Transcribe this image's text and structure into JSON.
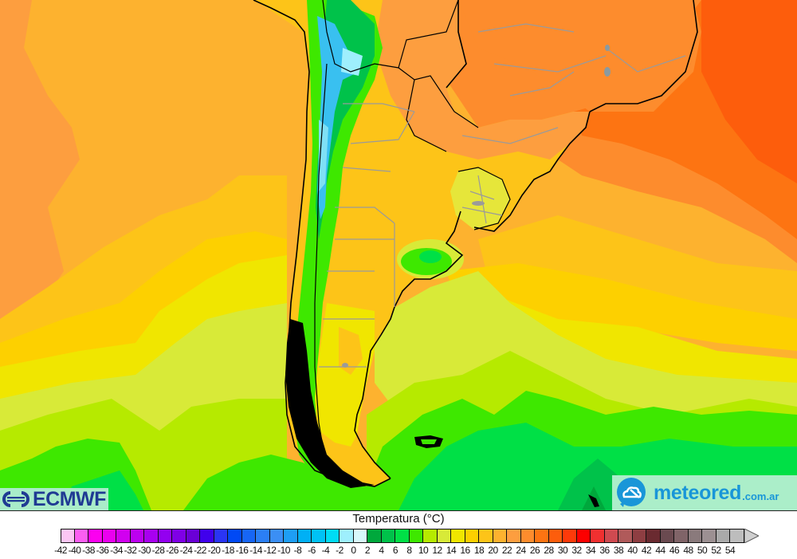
{
  "map": {
    "title": "Temperatura (°C)",
    "region": "Southern South America",
    "field": "temperature",
    "base_colors": {
      "ocean_north_west": "#fdb22f",
      "ocean_far_west": "#fd9e3f",
      "ocean_north_east": "#fd5d0c",
      "ocean_east_mid": "#fd7f23",
      "land_north_east": "#fd8c2d",
      "mid_yellow": "#fdd000",
      "yellow": "#f0e600",
      "yellow_green": "#d8ea38",
      "lime": "#b6ea00",
      "green_bright": "#3ee800",
      "green": "#00e046",
      "green_dark": "#00a83c",
      "andes_cyan": "#7fe0f5",
      "andes_blue": "#39c0f0",
      "coast": "#000000",
      "borders": "#9a9a9a"
    }
  },
  "logos": {
    "ecmwf": {
      "text": "ECMWF",
      "color": "#1f3a93",
      "bg": "#a9ecc9"
    },
    "meteored": {
      "text": "meteored",
      "suffix": ".com.ar",
      "color": "#1996d8",
      "bg": "#abeec9"
    }
  },
  "legend": {
    "title": "Temperatura (°C)",
    "min_arrow_color": "#fbc6f4",
    "max_arrow_color": "#cfcfcf",
    "bins": [
      {
        "label": "-42",
        "color": "#fbc6f4"
      },
      {
        "label": "-40",
        "color": "#fb5ef2"
      },
      {
        "label": "-38",
        "color": "#fb00f0"
      },
      {
        "label": "-36",
        "color": "#ea00f0"
      },
      {
        "label": "-34",
        "color": "#d100f0"
      },
      {
        "label": "-32",
        "color": "#bc00f0"
      },
      {
        "label": "-30",
        "color": "#a800f0"
      },
      {
        "label": "-28",
        "color": "#9300f0"
      },
      {
        "label": "-26",
        "color": "#7f00e6"
      },
      {
        "label": "-24",
        "color": "#6a00d6"
      },
      {
        "label": "-22",
        "color": "#4000ec"
      },
      {
        "label": "-20",
        "color": "#2a35f5"
      },
      {
        "label": "-18",
        "color": "#0049f5"
      },
      {
        "label": "-16",
        "color": "#1766f5"
      },
      {
        "label": "-14",
        "color": "#2b7ff5"
      },
      {
        "label": "-12",
        "color": "#3b8ff5"
      },
      {
        "label": "-10",
        "color": "#1e9ef5"
      },
      {
        "label": "-8",
        "color": "#00b0f5"
      },
      {
        "label": "-6",
        "color": "#00c2f5"
      },
      {
        "label": "-4",
        "color": "#00dcf5"
      },
      {
        "label": "-2",
        "color": "#9eeffd"
      },
      {
        "label": "0",
        "color": "#d9f8fb"
      },
      {
        "label": "2",
        "color": "#00a83c"
      },
      {
        "label": "4",
        "color": "#00c24a"
      },
      {
        "label": "6",
        "color": "#00e046"
      },
      {
        "label": "8",
        "color": "#3ee800"
      },
      {
        "label": "10",
        "color": "#b6ea00"
      },
      {
        "label": "12",
        "color": "#d8ea38"
      },
      {
        "label": "14",
        "color": "#f0e600"
      },
      {
        "label": "16",
        "color": "#fdd000"
      },
      {
        "label": "18",
        "color": "#fdc418"
      },
      {
        "label": "20",
        "color": "#fdb22f"
      },
      {
        "label": "22",
        "color": "#fd9e3f"
      },
      {
        "label": "24",
        "color": "#fd8c2d"
      },
      {
        "label": "26",
        "color": "#fd7412"
      },
      {
        "label": "28",
        "color": "#fd5d0c"
      },
      {
        "label": "30",
        "color": "#fd3a0a"
      },
      {
        "label": "32",
        "color": "#fd0000"
      },
      {
        "label": "34",
        "color": "#f03030"
      },
      {
        "label": "36",
        "color": "#cf4a50"
      },
      {
        "label": "38",
        "color": "#b05a5a"
      },
      {
        "label": "40",
        "color": "#8e3e42"
      },
      {
        "label": "42",
        "color": "#6a2a30"
      },
      {
        "label": "44",
        "color": "#6a4a50"
      },
      {
        "label": "46",
        "color": "#806468"
      },
      {
        "label": "48",
        "color": "#8a7a7c"
      },
      {
        "label": "50",
        "color": "#9c9092"
      },
      {
        "label": "52",
        "color": "#aaaaaa"
      },
      {
        "label": "54",
        "color": "#bdbdbd"
      }
    ]
  }
}
